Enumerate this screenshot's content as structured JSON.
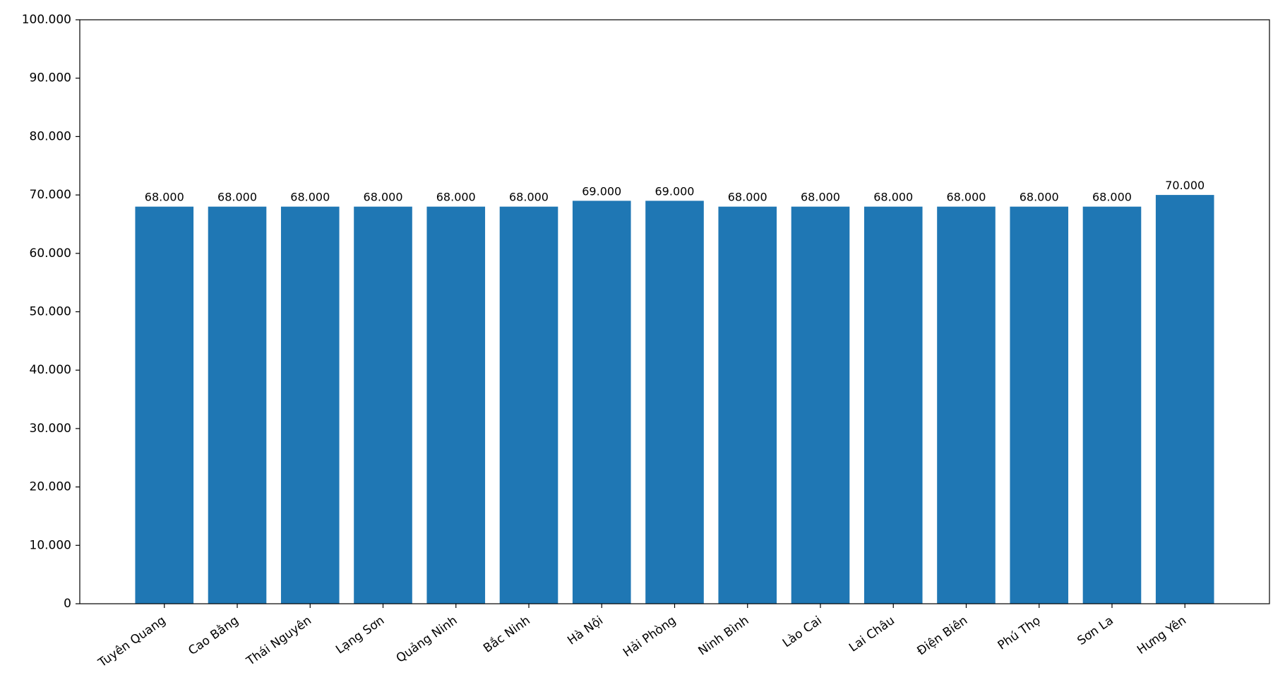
{
  "chart_data": {
    "type": "bar",
    "categories": [
      "Tuyên Quang",
      "Cao Bằng",
      "Thái Nguyên",
      "Lạng Sơn",
      "Quảng Ninh",
      "Bắc Ninh",
      "Hà Nội",
      "Hải Phòng",
      "Ninh Bình",
      "Lào Cai",
      "Lai Châu",
      "Điện Biên",
      "Phú Thọ",
      "Sơn La",
      "Hưng Yên"
    ],
    "values": [
      68000,
      68000,
      68000,
      68000,
      68000,
      68000,
      69000,
      69000,
      68000,
      68000,
      68000,
      68000,
      68000,
      68000,
      70000
    ],
    "value_labels": [
      "68.000",
      "68.000",
      "68.000",
      "68.000",
      "68.000",
      "68.000",
      "69.000",
      "69.000",
      "68.000",
      "68.000",
      "68.000",
      "68.000",
      "68.000",
      "68.000",
      "70.000"
    ],
    "color": "#1f77b4",
    "ylim": [
      0,
      100000
    ],
    "yticks": [
      0,
      {
        "value": 10000,
        "label": "10.000"
      },
      {
        "value": 20000,
        "label": "20.000"
      },
      {
        "value": 30000,
        "label": "30.000"
      },
      {
        "value": 40000,
        "label": "40.000"
      },
      {
        "value": 50000,
        "label": "50.000"
      },
      {
        "value": 60000,
        "label": "60.000"
      },
      {
        "value": 70000,
        "label": "70.000"
      },
      {
        "value": 80000,
        "label": "80.000"
      },
      {
        "value": 90000,
        "label": "90.000"
      },
      {
        "value": 100000,
        "label": "100.000"
      }
    ],
    "grid": false
  }
}
